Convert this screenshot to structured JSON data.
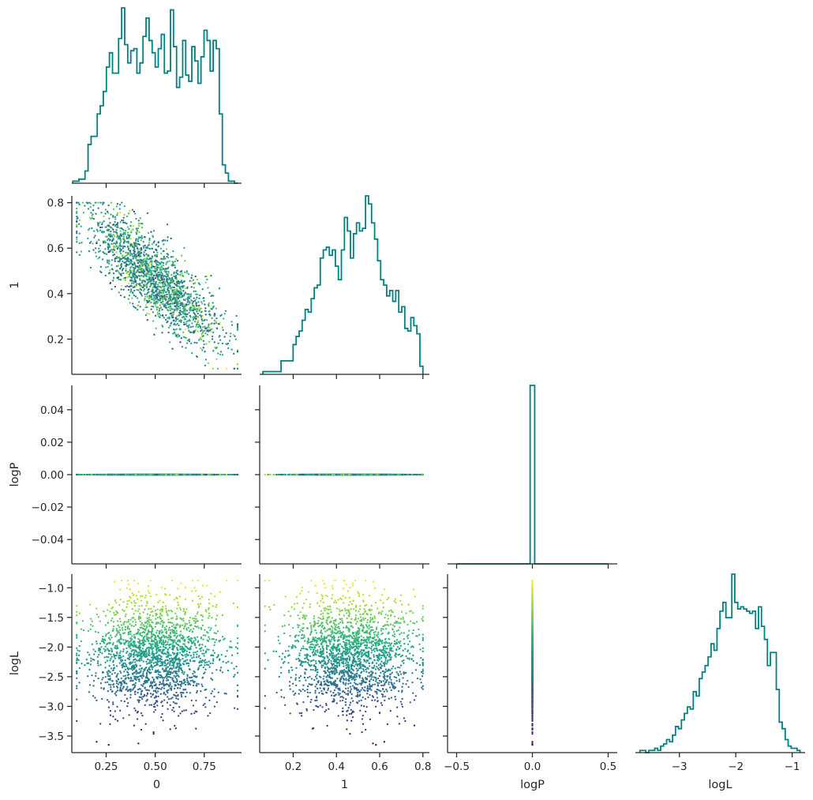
{
  "chart_data": {
    "type": "corner",
    "variables": [
      "0",
      "1",
      "logP",
      "logL"
    ],
    "histogram_color": "#008080",
    "scatter_colormap": "viridis",
    "scatter_color_by": "logL",
    "point_count": 2000,
    "axes": {
      "0": {
        "range": [
          0.075,
          0.94
        ],
        "ticks": [
          0.25,
          0.5,
          0.75
        ],
        "tick_labels": [
          "0.25",
          "0.50",
          "0.75"
        ]
      },
      "1": {
        "range": [
          0.045,
          0.83
        ],
        "ticks": [
          0.2,
          0.4,
          0.6,
          0.8
        ],
        "tick_labels": [
          "0.2",
          "0.4",
          "0.6",
          "0.8"
        ]
      },
      "logP": {
        "range": [
          -0.055,
          0.055
        ],
        "ticks": [
          -0.04,
          -0.02,
          0.0,
          0.02,
          0.04
        ],
        "tick_labels": [
          "−0.04",
          "−0.02",
          "0.00",
          "0.02",
          "0.04"
        ]
      },
      "logP_diag": {
        "range": [
          -0.56,
          0.56
        ],
        "ticks": [
          -0.5,
          0.0,
          0.5
        ],
        "tick_labels": [
          "−0.5",
          "0.0",
          "0.5"
        ]
      },
      "logL": {
        "range": [
          -3.78,
          -0.77
        ],
        "ticks": [
          -3.5,
          -3.0,
          -2.5,
          -2.0,
          -1.5,
          -1.0
        ],
        "tick_labels": [
          "−3.5",
          "−3.0",
          "−2.5",
          "−2.0",
          "−1.5",
          "−1.0"
        ]
      },
      "logL_diag": {
        "range": [
          -3.78,
          -0.77
        ],
        "ticks": [
          -3,
          -2,
          -1
        ],
        "tick_labels": [
          "−3",
          "−2",
          "−1"
        ]
      }
    },
    "histograms": {
      "0": {
        "range": [
          0.08,
          0.92
        ],
        "counts": [
          1,
          1,
          2,
          2,
          6,
          19,
          23,
          23,
          34,
          38,
          45,
          57,
          64,
          54,
          54,
          71,
          86,
          68,
          59,
          65,
          66,
          54,
          59,
          72,
          81,
          70,
          64,
          57,
          66,
          73,
          54,
          55,
          85,
          67,
          47,
          52,
          70,
          53,
          50,
          67,
          60,
          49,
          62,
          75,
          70,
          55,
          70,
          66,
          34,
          9,
          5,
          1,
          1,
          0
        ]
      },
      "1": {
        "range": [
          0.06,
          0.8
        ],
        "counts": [
          1,
          1,
          1,
          1,
          1,
          1,
          5,
          5,
          5,
          5,
          11,
          14,
          16,
          20,
          24,
          23,
          28,
          32,
          33,
          43,
          46,
          47,
          44,
          46,
          40,
          35,
          46,
          58,
          53,
          43,
          52,
          56,
          53,
          54,
          66,
          63,
          56,
          50,
          42,
          35,
          33,
          29,
          31,
          27,
          31,
          23,
          25,
          17,
          16,
          21,
          18,
          15,
          3
        ]
      },
      "logP": {
        "range": [
          -0.5,
          0.5
        ],
        "spike_at": 0.0,
        "spike_width": 0.03
      },
      "logL": {
        "range": [
          -3.7,
          -0.86
        ],
        "counts": [
          1,
          1,
          0,
          1,
          1,
          2,
          1,
          3,
          4,
          6,
          5,
          8,
          12,
          11,
          15,
          18,
          21,
          20,
          28,
          26,
          34,
          37,
          40,
          44,
          50,
          47,
          57,
          65,
          69,
          62,
          62,
          82,
          69,
          66,
          67,
          66,
          65,
          64,
          65,
          57,
          67,
          58,
          52,
          40,
          46,
          46,
          29,
          14,
          11,
          6,
          3,
          2,
          2,
          1
        ]
      }
    }
  }
}
